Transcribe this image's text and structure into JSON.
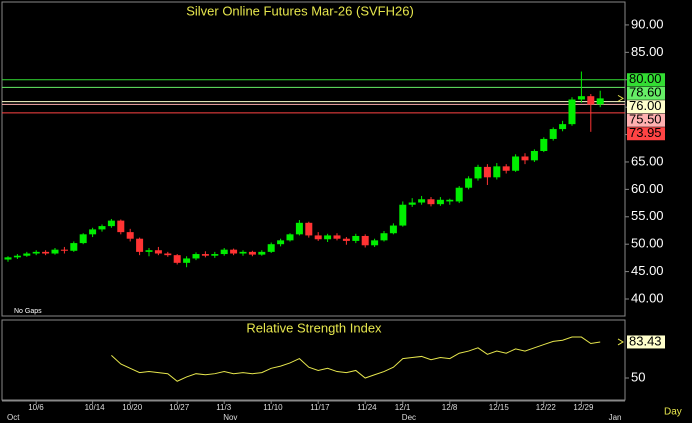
{
  "chart_data": [
    {
      "type": "candlestick",
      "title": "Silver Online Futures Mar-26 (SVFH26)",
      "note": "No Gaps",
      "x_unit": "Day",
      "up_color": "#00ee00",
      "down_color": "#ff3333",
      "categories": [
        null,
        null,
        null,
        "10/6",
        null,
        null,
        null,
        null,
        null,
        "10/14",
        null,
        null,
        null,
        "10/20",
        null,
        null,
        null,
        null,
        "10/27",
        null,
        null,
        null,
        null,
        "11/3",
        null,
        null,
        null,
        null,
        "11/10",
        null,
        null,
        null,
        null,
        "11/17",
        null,
        null,
        null,
        null,
        "11/24",
        null,
        null,
        null,
        "12/1",
        null,
        null,
        null,
        null,
        "12/8",
        null,
        null,
        null,
        null,
        "12/15",
        null,
        null,
        null,
        null,
        "12/22",
        null,
        null,
        null,
        "12/29",
        null,
        null
      ],
      "x_groups": [
        "Oct",
        "Nov",
        "Dec",
        "Jan"
      ],
      "ohlc": [
        [
          47.2,
          47.8,
          46.8,
          47.6
        ],
        [
          47.6,
          48.2,
          47.3,
          47.9
        ],
        [
          47.9,
          48.6,
          47.7,
          48.3
        ],
        [
          48.3,
          48.9,
          48.0,
          48.6
        ],
        [
          48.6,
          48.9,
          48.0,
          48.3
        ],
        [
          48.3,
          49.3,
          48.1,
          49.0
        ],
        [
          49.0,
          49.5,
          48.3,
          48.8
        ],
        [
          48.8,
          50.5,
          48.6,
          50.2
        ],
        [
          50.2,
          52.0,
          50.0,
          51.8
        ],
        [
          51.8,
          53.0,
          51.3,
          52.7
        ],
        [
          52.7,
          53.6,
          52.3,
          53.3
        ],
        [
          53.3,
          54.6,
          53.0,
          54.3
        ],
        [
          54.3,
          54.5,
          51.8,
          52.2
        ],
        [
          52.2,
          52.8,
          50.5,
          51.0
        ],
        [
          51.0,
          51.2,
          48.0,
          48.6
        ],
        [
          48.6,
          49.3,
          47.8,
          48.9
        ],
        [
          48.9,
          49.5,
          48.0,
          48.3
        ],
        [
          48.3,
          48.6,
          47.7,
          48.0
        ],
        [
          48.0,
          48.2,
          46.3,
          46.6
        ],
        [
          46.6,
          47.8,
          45.8,
          47.4
        ],
        [
          47.4,
          48.5,
          47.1,
          48.2
        ],
        [
          48.2,
          48.7,
          47.6,
          47.9
        ],
        [
          47.9,
          48.6,
          47.5,
          48.2
        ],
        [
          48.2,
          49.3,
          47.9,
          49.0
        ],
        [
          49.0,
          49.2,
          48.0,
          48.3
        ],
        [
          48.3,
          48.9,
          47.9,
          48.6
        ],
        [
          48.6,
          48.8,
          47.8,
          48.1
        ],
        [
          48.1,
          48.9,
          47.9,
          48.6
        ],
        [
          48.6,
          50.3,
          48.4,
          50.0
        ],
        [
          50.0,
          51.0,
          49.6,
          50.7
        ],
        [
          50.7,
          52.0,
          50.5,
          51.8
        ],
        [
          51.8,
          54.4,
          51.6,
          53.9
        ],
        [
          53.9,
          54.1,
          51.2,
          51.6
        ],
        [
          51.6,
          52.2,
          50.6,
          50.9
        ],
        [
          50.9,
          51.9,
          50.4,
          51.6
        ],
        [
          51.6,
          52.0,
          50.7,
          51.0
        ],
        [
          51.0,
          51.3,
          49.9,
          50.6
        ],
        [
          50.6,
          51.9,
          50.2,
          51.5
        ],
        [
          51.5,
          51.8,
          49.4,
          49.8
        ],
        [
          49.8,
          51.0,
          49.5,
          50.7
        ],
        [
          50.7,
          52.4,
          50.5,
          52.0
        ],
        [
          52.0,
          53.8,
          51.8,
          53.4
        ],
        [
          53.4,
          57.8,
          53.2,
          57.2
        ],
        [
          57.2,
          58.4,
          56.8,
          57.6
        ],
        [
          57.6,
          58.8,
          57.2,
          58.2
        ],
        [
          58.2,
          58.6,
          56.9,
          57.3
        ],
        [
          57.3,
          58.6,
          57.0,
          58.1
        ],
        [
          57.8,
          58.3,
          57.2,
          58.1
        ],
        [
          57.8,
          60.6,
          57.5,
          60.3
        ],
        [
          60.3,
          62.4,
          60.0,
          62.0
        ],
        [
          62.0,
          64.5,
          61.6,
          64.1
        ],
        [
          64.1,
          64.6,
          60.8,
          62.2
        ],
        [
          62.2,
          64.8,
          61.8,
          64.2
        ],
        [
          64.2,
          64.6,
          62.9,
          63.4
        ],
        [
          63.4,
          66.4,
          63.2,
          66.0
        ],
        [
          66.0,
          66.6,
          64.6,
          65.3
        ],
        [
          65.3,
          67.3,
          65.0,
          67.0
        ],
        [
          67.0,
          69.5,
          66.8,
          69.2
        ],
        [
          69.2,
          71.3,
          68.9,
          71.0
        ],
        [
          71.0,
          72.5,
          70.6,
          71.9
        ],
        [
          71.9,
          76.8,
          71.6,
          76.4
        ],
        [
          76.4,
          81.5,
          75.8,
          77.0
        ],
        [
          77.0,
          77.4,
          70.5,
          75.5
        ],
        [
          75.5,
          78.0,
          75.0,
          76.6
        ]
      ],
      "ylim": [
        36.9,
        94.0
      ],
      "yticks": [
        {
          "value": 40,
          "label": "40.00"
        },
        {
          "value": 45,
          "label": "45.00"
        },
        {
          "value": 50,
          "label": "50.00"
        },
        {
          "value": 55,
          "label": "55.00"
        },
        {
          "value": 60,
          "label": "60.00"
        },
        {
          "value": 65,
          "label": "65.00"
        },
        {
          "value": 70,
          "label": "70.00"
        },
        {
          "value": 75,
          "label": "75.00"
        },
        {
          "value": 80,
          "label": "80.00"
        },
        {
          "value": 85,
          "label": "85.00"
        },
        {
          "value": 90,
          "label": "90.00"
        }
      ],
      "levels": [
        {
          "value": 80,
          "label": "80.00",
          "color": "#33dd33"
        },
        {
          "value": 78.6,
          "label": "78.60",
          "color": "#66ee66"
        },
        {
          "value": 76,
          "label": "76.00",
          "color": "#ffffcc"
        },
        {
          "value": 75.5,
          "label": "75.50",
          "color": "#ffb0b0"
        },
        {
          "value": 73.95,
          "label": "73.95",
          "color": "#ff4444"
        }
      ]
    },
    {
      "type": "line",
      "title": "Relative Strength Index",
      "color": "#e6e64d",
      "values": [
        null,
        null,
        null,
        null,
        null,
        null,
        null,
        null,
        null,
        null,
        null,
        71,
        63,
        59,
        55,
        56,
        55,
        54,
        47,
        51,
        54,
        53,
        54,
        56,
        54,
        55,
        54,
        55,
        59,
        61,
        64,
        68,
        60,
        57,
        59,
        56,
        55,
        57,
        50,
        53,
        56,
        60,
        68,
        69,
        70,
        67,
        69,
        68,
        73,
        75,
        78,
        72,
        75,
        73,
        77,
        75,
        78,
        81,
        84,
        85,
        88,
        88,
        82,
        83.43
      ],
      "ylim": [
        29.6,
        103.8
      ],
      "yticks": [
        50
      ]
    }
  ]
}
